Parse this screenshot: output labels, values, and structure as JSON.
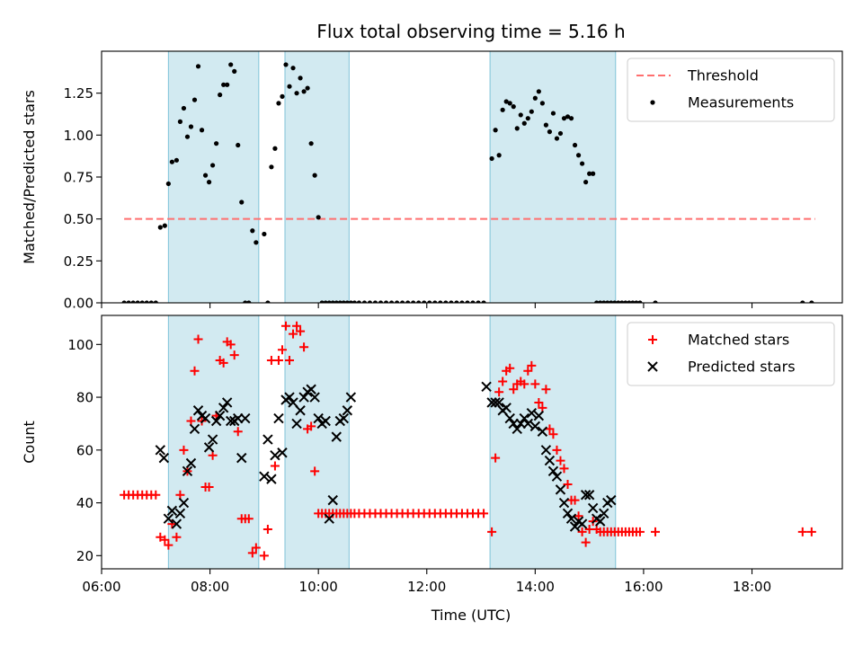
{
  "figure": {
    "title": "Flux total observing time = 5.16 h",
    "xlabel": "Time (UTC)"
  },
  "colors": {
    "threshold": "#ff6f6f",
    "measurements": "#000000",
    "matched": "#ff0000",
    "predicted": "#000000",
    "span_fill": "#add8e6"
  },
  "chart_data": [
    {
      "type": "scatter",
      "panel": "top",
      "ylabel": "Matched/Predicted stars",
      "xlim": [
        "06:00",
        "19:40"
      ],
      "ylim": [
        0,
        1.5
      ],
      "yticks": [
        0.0,
        0.25,
        0.5,
        0.75,
        1.0,
        1.25
      ],
      "ytick_labels": [
        "0.00",
        "0.25",
        "0.50",
        "0.75",
        "1.00",
        "1.25"
      ],
      "xticks": [
        "06:00",
        "08:00",
        "10:00",
        "12:00",
        "14:00",
        "16:00",
        "18:00"
      ],
      "observing_intervals": [
        [
          "07:14",
          "08:54"
        ],
        [
          "09:23",
          "10:34"
        ],
        [
          "13:10",
          "15:29"
        ]
      ],
      "legend": {
        "location": "upper right",
        "entries": [
          "Threshold",
          "Measurements"
        ]
      },
      "series": [
        {
          "name": "Threshold",
          "style": "dashed-line",
          "x": [
            "06:25",
            "19:10"
          ],
          "y": [
            0.5,
            0.5
          ]
        },
        {
          "name": "Measurements",
          "style": "dot",
          "x": [
            "06:25",
            "06:30",
            "06:35",
            "06:40",
            "06:45",
            "06:50",
            "06:55",
            "07:00",
            "07:05",
            "07:10",
            "07:14",
            "07:18",
            "07:23",
            "07:27",
            "07:31",
            "07:35",
            "07:39",
            "07:43",
            "07:47",
            "07:51",
            "07:55",
            "07:59",
            "08:03",
            "08:07",
            "08:11",
            "08:15",
            "08:19",
            "08:23",
            "08:27",
            "08:31",
            "08:35",
            "08:39",
            "08:43",
            "08:47",
            "08:51",
            "09:00",
            "09:04",
            "09:08",
            "09:12",
            "09:16",
            "09:20",
            "09:24",
            "09:28",
            "09:32",
            "09:36",
            "09:40",
            "09:44",
            "09:48",
            "09:52",
            "09:56",
            "10:00",
            "10:04",
            "10:08",
            "10:12",
            "10:16",
            "10:20",
            "10:24",
            "10:28",
            "10:32",
            "10:36",
            "10:40",
            "10:45",
            "10:51",
            "10:57",
            "11:03",
            "11:09",
            "11:15",
            "11:21",
            "11:27",
            "11:33",
            "11:39",
            "11:45",
            "11:51",
            "11:57",
            "12:03",
            "12:09",
            "12:15",
            "12:21",
            "12:27",
            "12:33",
            "12:39",
            "12:45",
            "12:51",
            "12:57",
            "13:03",
            "13:12",
            "13:16",
            "13:20",
            "13:24",
            "13:28",
            "13:32",
            "13:36",
            "13:40",
            "13:44",
            "13:48",
            "13:52",
            "13:56",
            "14:00",
            "14:04",
            "14:08",
            "14:12",
            "14:16",
            "14:20",
            "14:24",
            "14:28",
            "14:32",
            "14:36",
            "14:40",
            "14:44",
            "14:48",
            "14:52",
            "14:56",
            "15:00",
            "15:04",
            "15:08",
            "15:12",
            "15:16",
            "15:20",
            "15:24",
            "15:28",
            "15:32",
            "15:36",
            "15:40",
            "15:44",
            "15:48",
            "15:52",
            "15:56",
            "16:13",
            "18:56",
            "19:06"
          ],
          "y": [
            0.0,
            0.0,
            0.0,
            0.0,
            0.0,
            0.0,
            0.0,
            0.0,
            0.45,
            0.46,
            0.71,
            0.84,
            0.85,
            1.08,
            1.16,
            0.99,
            1.05,
            1.21,
            1.41,
            1.03,
            0.76,
            0.72,
            0.82,
            0.95,
            1.24,
            1.3,
            1.3,
            1.42,
            1.38,
            0.94,
            0.6,
            0.0,
            0.0,
            0.43,
            0.36,
            0.41,
            0.0,
            0.81,
            0.92,
            1.19,
            1.23,
            1.42,
            1.29,
            1.4,
            1.25,
            1.34,
            1.26,
            1.28,
            0.95,
            0.76,
            0.51,
            0.0,
            0.0,
            0.0,
            0.0,
            0.0,
            0.0,
            0.0,
            0.0,
            0.0,
            0.0,
            0.0,
            0.0,
            0.0,
            0.0,
            0.0,
            0.0,
            0.0,
            0.0,
            0.0,
            0.0,
            0.0,
            0.0,
            0.0,
            0.0,
            0.0,
            0.0,
            0.0,
            0.0,
            0.0,
            0.0,
            0.0,
            0.0,
            0.0,
            0.0,
            0.86,
            1.03,
            0.88,
            1.15,
            1.2,
            1.19,
            1.17,
            1.04,
            1.12,
            1.07,
            1.1,
            1.14,
            1.22,
            1.26,
            1.19,
            1.06,
            1.02,
            1.13,
            0.98,
            1.01,
            1.1,
            1.11,
            1.1,
            0.94,
            0.88,
            0.83,
            0.72,
            0.77,
            0.77,
            0.0,
            0.0,
            0.0,
            0.0,
            0.0,
            0.0,
            0.0,
            0.0,
            0.0,
            0.0,
            0.0,
            0.0,
            0.0,
            0.0,
            0.0,
            0.0
          ]
        }
      ]
    },
    {
      "type": "scatter",
      "panel": "bottom",
      "ylabel": "Count",
      "xlabel": "Time (UTC)",
      "xlim": [
        "06:00",
        "19:40"
      ],
      "ylim": [
        15,
        111
      ],
      "yticks": [
        20,
        40,
        60,
        80,
        100
      ],
      "ytick_labels": [
        "20",
        "40",
        "60",
        "80",
        "100"
      ],
      "xticks": [
        "06:00",
        "08:00",
        "10:00",
        "12:00",
        "14:00",
        "16:00",
        "18:00"
      ],
      "xtick_labels": [
        "06:00",
        "08:00",
        "10:00",
        "12:00",
        "14:00",
        "16:00",
        "18:00"
      ],
      "observing_intervals": [
        [
          "07:14",
          "08:54"
        ],
        [
          "09:23",
          "10:34"
        ],
        [
          "13:10",
          "15:29"
        ]
      ],
      "legend": {
        "location": "upper right",
        "entries": [
          "Matched stars",
          "Predicted stars"
        ]
      },
      "series": [
        {
          "name": "Matched stars",
          "marker": "+",
          "x": [
            "06:25",
            "06:30",
            "06:35",
            "06:40",
            "06:45",
            "06:50",
            "06:55",
            "07:00",
            "07:05",
            "07:10",
            "07:14",
            "07:18",
            "07:23",
            "07:27",
            "07:31",
            "07:35",
            "07:39",
            "07:43",
            "07:47",
            "07:51",
            "07:55",
            "07:59",
            "08:03",
            "08:07",
            "08:11",
            "08:15",
            "08:19",
            "08:23",
            "08:27",
            "08:31",
            "08:35",
            "08:39",
            "08:43",
            "08:47",
            "08:51",
            "09:00",
            "09:04",
            "09:08",
            "09:12",
            "09:16",
            "09:20",
            "09:24",
            "09:28",
            "09:32",
            "09:36",
            "09:40",
            "09:44",
            "09:48",
            "09:52",
            "09:56",
            "10:00",
            "10:04",
            "10:08",
            "10:12",
            "10:16",
            "10:20",
            "10:24",
            "10:28",
            "10:32",
            "10:36",
            "10:40",
            "10:45",
            "10:51",
            "10:57",
            "11:03",
            "11:09",
            "11:15",
            "11:21",
            "11:27",
            "11:33",
            "11:39",
            "11:45",
            "11:51",
            "11:57",
            "12:03",
            "12:09",
            "12:15",
            "12:21",
            "12:27",
            "12:33",
            "12:39",
            "12:45",
            "12:51",
            "12:57",
            "13:03",
            "13:12",
            "13:16",
            "13:20",
            "13:24",
            "13:28",
            "13:32",
            "13:36",
            "13:40",
            "13:44",
            "13:48",
            "13:52",
            "13:56",
            "14:00",
            "14:04",
            "14:08",
            "14:12",
            "14:16",
            "14:20",
            "14:24",
            "14:28",
            "14:32",
            "14:36",
            "14:40",
            "14:44",
            "14:48",
            "14:52",
            "14:56",
            "15:00",
            "15:04",
            "15:08",
            "15:12",
            "15:16",
            "15:20",
            "15:24",
            "15:28",
            "15:32",
            "15:36",
            "15:40",
            "15:44",
            "15:48",
            "15:52",
            "15:56",
            "16:13",
            "18:56",
            "19:06"
          ],
          "y": [
            43,
            43,
            43,
            43,
            43,
            43,
            43,
            43,
            27,
            26,
            24,
            32,
            27,
            43,
            60,
            52,
            71,
            90,
            102,
            71,
            46,
            46,
            58,
            73,
            94,
            93,
            101,
            100,
            96,
            67,
            34,
            34,
            34,
            21,
            23,
            20,
            30,
            94,
            54,
            94,
            98,
            107,
            94,
            104,
            107,
            105,
            99,
            68,
            69,
            52,
            36,
            36,
            36,
            36,
            36,
            36,
            36,
            36,
            36,
            36,
            36,
            36,
            36,
            36,
            36,
            36,
            36,
            36,
            36,
            36,
            36,
            36,
            36,
            36,
            36,
            36,
            36,
            36,
            36,
            36,
            36,
            36,
            36,
            36,
            36,
            29,
            57,
            82,
            86,
            90,
            91,
            83,
            85,
            86,
            85,
            90,
            92,
            85,
            78,
            76,
            83,
            68,
            66,
            60,
            56,
            53,
            47,
            41,
            41,
            35,
            29,
            25,
            30,
            33,
            30,
            29,
            29,
            29,
            29,
            29,
            29,
            29,
            29,
            29,
            29,
            29,
            29,
            29,
            29,
            29
          ],
          "note": ""
        },
        {
          "name": "Predicted stars",
          "marker": "x",
          "x": [
            "07:05",
            "07:09",
            "07:14",
            "07:18",
            "07:23",
            "07:27",
            "07:31",
            "07:35",
            "07:39",
            "07:43",
            "07:47",
            "07:51",
            "07:55",
            "07:59",
            "08:03",
            "08:07",
            "08:11",
            "08:15",
            "08:19",
            "08:23",
            "08:27",
            "08:31",
            "08:35",
            "08:39",
            "09:00",
            "09:04",
            "09:08",
            "09:12",
            "09:16",
            "09:20",
            "09:24",
            "09:28",
            "09:32",
            "09:36",
            "09:40",
            "09:44",
            "09:48",
            "09:52",
            "09:56",
            "10:00",
            "10:04",
            "10:08",
            "10:12",
            "10:16",
            "10:20",
            "10:24",
            "10:28",
            "10:32",
            "10:36",
            "13:06",
            "13:12",
            "13:16",
            "13:20",
            "13:24",
            "13:28",
            "13:32",
            "13:36",
            "13:40",
            "13:44",
            "13:48",
            "13:52",
            "13:56",
            "14:00",
            "14:04",
            "14:08",
            "14:12",
            "14:16",
            "14:20",
            "14:24",
            "14:28",
            "14:32",
            "14:36",
            "14:40",
            "14:44",
            "14:48",
            "14:52",
            "14:56",
            "15:00",
            "15:04",
            "15:08",
            "15:12",
            "15:16",
            "15:20",
            "15:24"
          ],
          "y": [
            60,
            57,
            34,
            37,
            32,
            36,
            40,
            52,
            55,
            68,
            75,
            73,
            72,
            61,
            64,
            71,
            73,
            76,
            78,
            71,
            71,
            72,
            57,
            72,
            50,
            64,
            49,
            58,
            72,
            59,
            79,
            80,
            78,
            70,
            75,
            80,
            82,
            83,
            80,
            72,
            70,
            71,
            34,
            41,
            65,
            71,
            72,
            75,
            80,
            84,
            78,
            78,
            78,
            75,
            76,
            72,
            70,
            68,
            70,
            72,
            70,
            74,
            69,
            73,
            67,
            60,
            56,
            52,
            50,
            45,
            40,
            36,
            34,
            31,
            33,
            32,
            43,
            43,
            38,
            34,
            33,
            36,
            40,
            41
          ],
          "note": ""
        }
      ]
    }
  ]
}
